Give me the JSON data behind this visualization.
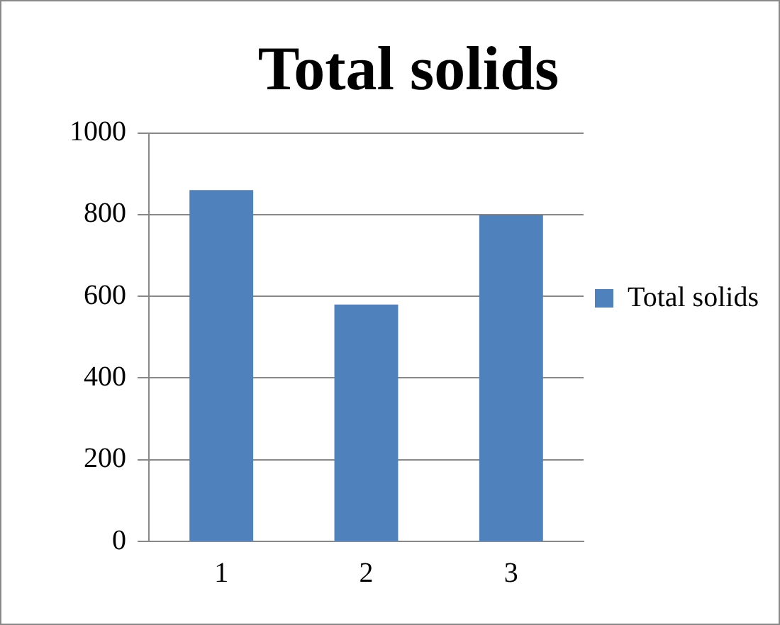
{
  "chart_data": {
    "type": "bar",
    "title": "Total solids",
    "categories": [
      "1",
      "2",
      "3"
    ],
    "series": [
      {
        "name": "Total solids",
        "color": "#4f81bd",
        "values": [
          860,
          580,
          800
        ]
      }
    ],
    "ylim": [
      0,
      1000
    ],
    "yticks": [
      0,
      200,
      400,
      600,
      800,
      1000
    ],
    "grid": "y",
    "legend": "right"
  }
}
